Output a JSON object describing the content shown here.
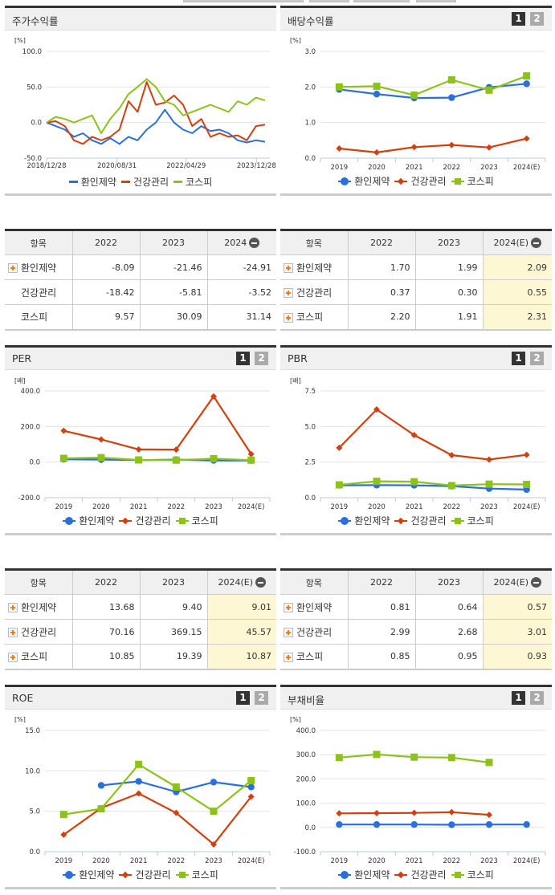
{
  "series_names": [
    "환인제약",
    "건강관리",
    "코스피"
  ],
  "colors": {
    "hwanin": "#2a6fdb",
    "health": "#d1400f",
    "kospi": "#8cc21a",
    "header_bg": "#f0f0f0",
    "highlight": "#fdf8d3"
  },
  "pager": {
    "p1": "1",
    "p2": "2"
  },
  "panels": {
    "stock_return": {
      "title": "주가수익률",
      "unit": "[%]",
      "yticks": [
        "100.0",
        "50.0",
        "0.0",
        "-50.0"
      ],
      "xticks": [
        "2018/12/28",
        "2020/08/31",
        "2022/04/29",
        "2023/12/28"
      ]
    },
    "dividend_yield": {
      "title": "배당수익률",
      "unit": "[%]",
      "yticks": [
        "3.0",
        "2.0",
        "1.0",
        "0.0"
      ],
      "xticks": [
        "2019",
        "2020",
        "2021",
        "2022",
        "2023",
        "2024(E)"
      ]
    },
    "per": {
      "title": "PER",
      "unit": "[배]",
      "yticks": [
        "400.0",
        "200.0",
        "0.0",
        "-200.0"
      ],
      "xticks": [
        "2019",
        "2020",
        "2021",
        "2022",
        "2023",
        "2024(E)"
      ]
    },
    "pbr": {
      "title": "PBR",
      "unit": "[배]",
      "yticks": [
        "7.5",
        "5.0",
        "2.5",
        "0.0"
      ],
      "xticks": [
        "2019",
        "2020",
        "2021",
        "2022",
        "2023",
        "2024(E)"
      ]
    },
    "roe": {
      "title": "ROE",
      "unit": "[%]",
      "yticks": [
        "15.0",
        "10.0",
        "5.0",
        "0.0"
      ],
      "xticks": [
        "2019",
        "2020",
        "2021",
        "2022",
        "2023",
        "2024(E)"
      ]
    },
    "debt_ratio": {
      "title": "부채비율",
      "unit": "[%]",
      "yticks": [
        "400.0",
        "300.0",
        "200.0",
        "100.0",
        "0.0",
        "-100.0"
      ],
      "xticks": [
        "2019",
        "2020",
        "2021",
        "2022",
        "2023",
        "2024(E)"
      ]
    }
  },
  "tables": {
    "stock_return": {
      "headers": [
        "항목",
        "2022",
        "2023",
        "2024"
      ],
      "rows": [
        {
          "name": "환인제약",
          "values": [
            "-8.09",
            "-21.46",
            "-24.91"
          ],
          "expand": true
        },
        {
          "name": "건강관리",
          "values": [
            "-18.42",
            "-5.81",
            "-3.52"
          ],
          "expand": false
        },
        {
          "name": "코스피",
          "values": [
            "9.57",
            "30.09",
            "31.14"
          ],
          "expand": false
        }
      ]
    },
    "dividend_yield": {
      "headers": [
        "항목",
        "2022",
        "2023",
        "2024(E)"
      ],
      "rows": [
        {
          "name": "환인제약",
          "values": [
            "1.70",
            "1.99",
            "2.09"
          ],
          "expand": true
        },
        {
          "name": "건강관리",
          "values": [
            "0.37",
            "0.30",
            "0.55"
          ],
          "expand": true
        },
        {
          "name": "코스피",
          "values": [
            "2.20",
            "1.91",
            "2.31"
          ],
          "expand": true
        }
      ]
    },
    "per": {
      "headers": [
        "항목",
        "2022",
        "2023",
        "2024(E)"
      ],
      "rows": [
        {
          "name": "환인제약",
          "values": [
            "13.68",
            "9.40",
            "9.01"
          ],
          "expand": true
        },
        {
          "name": "건강관리",
          "values": [
            "70.16",
            "369.15",
            "45.57"
          ],
          "expand": true
        },
        {
          "name": "코스피",
          "values": [
            "10.85",
            "19.39",
            "10.87"
          ],
          "expand": true
        }
      ]
    },
    "pbr": {
      "headers": [
        "항목",
        "2022",
        "2023",
        "2024(E)"
      ],
      "rows": [
        {
          "name": "환인제약",
          "values": [
            "0.81",
            "0.64",
            "0.57"
          ],
          "expand": true
        },
        {
          "name": "건강관리",
          "values": [
            "2.99",
            "2.68",
            "3.01"
          ],
          "expand": true
        },
        {
          "name": "코스피",
          "values": [
            "0.85",
            "0.95",
            "0.93"
          ],
          "expand": true
        }
      ]
    }
  },
  "chart_data": [
    {
      "title": "주가수익률",
      "type": "line",
      "ylabel": "[%]",
      "ylim": [
        -50,
        100
      ],
      "x": [
        "2018/12/28",
        "2020/08/31",
        "2022/04/29",
        "2023/12/28"
      ],
      "series": [
        {
          "name": "환인제약",
          "values": [
            0,
            -5,
            -10,
            -20,
            -15,
            -25,
            -30,
            -22,
            -30,
            -20,
            -25,
            -10,
            0,
            18,
            0,
            -10,
            -15,
            -5,
            -12,
            -10,
            -15,
            -25,
            -28,
            -25,
            -27
          ]
        },
        {
          "name": "건강관리",
          "values": [
            0,
            2,
            -5,
            -25,
            -30,
            -20,
            -25,
            -20,
            -10,
            30,
            15,
            57,
            25,
            28,
            38,
            25,
            -5,
            5,
            -20,
            -15,
            -20,
            -18,
            -25,
            -5,
            -3
          ]
        },
        {
          "name": "코스피",
          "values": [
            0,
            8,
            5,
            0,
            5,
            10,
            -15,
            5,
            20,
            40,
            50,
            61,
            50,
            30,
            25,
            10,
            15,
            20,
            25,
            20,
            15,
            30,
            25,
            35,
            31
          ]
        }
      ]
    },
    {
      "title": "배당수익률",
      "type": "line",
      "ylabel": "[%]",
      "ylim": [
        0,
        3
      ],
      "categories": [
        "2019",
        "2020",
        "2021",
        "2022",
        "2023",
        "2024(E)"
      ],
      "series": [
        {
          "name": "환인제약",
          "values": [
            1.93,
            1.8,
            1.69,
            1.7,
            1.99,
            2.09
          ]
        },
        {
          "name": "건강관리",
          "values": [
            0.27,
            0.16,
            0.31,
            0.37,
            0.3,
            0.55
          ]
        },
        {
          "name": "코스피",
          "values": [
            2.0,
            2.02,
            1.77,
            2.2,
            1.91,
            2.31
          ]
        }
      ]
    },
    {
      "title": "PER",
      "type": "line",
      "ylabel": "[배]",
      "ylim": [
        -200,
        400
      ],
      "categories": [
        "2019",
        "2020",
        "2021",
        "2022",
        "2023",
        "2024(E)"
      ],
      "series": [
        {
          "name": "환인제약",
          "values": [
            16,
            14,
            11,
            13.68,
            9.4,
            9.01
          ]
        },
        {
          "name": "건강관리",
          "values": [
            176,
            127,
            71,
            70.16,
            369.15,
            45.57
          ]
        },
        {
          "name": "코스피",
          "values": [
            21,
            25,
            12,
            10.85,
            19.39,
            10.87
          ]
        }
      ]
    },
    {
      "title": "PBR",
      "type": "line",
      "ylabel": "[배]",
      "ylim": [
        0,
        7.5
      ],
      "categories": [
        "2019",
        "2020",
        "2021",
        "2022",
        "2023",
        "2024(E)"
      ],
      "series": [
        {
          "name": "환인제약",
          "values": [
            0.87,
            0.88,
            0.87,
            0.81,
            0.64,
            0.57
          ]
        },
        {
          "name": "건강관리",
          "values": [
            3.5,
            6.2,
            4.4,
            2.99,
            2.68,
            3.01
          ]
        },
        {
          "name": "코스피",
          "values": [
            0.9,
            1.15,
            1.12,
            0.85,
            0.95,
            0.93
          ]
        }
      ]
    },
    {
      "title": "ROE",
      "type": "line",
      "ylabel": "[%]",
      "ylim": [
        0,
        15
      ],
      "categories": [
        "2019",
        "2020",
        "2021",
        "2022",
        "2023",
        "2024(E)"
      ],
      "series": [
        {
          "name": "환인제약",
          "values": [
            null,
            8.2,
            8.7,
            7.4,
            8.6,
            8.0
          ]
        },
        {
          "name": "건강관리",
          "values": [
            2.1,
            5.4,
            7.2,
            4.8,
            0.9,
            6.8
          ]
        },
        {
          "name": "코스피",
          "values": [
            4.6,
            5.3,
            10.8,
            8.0,
            5.0,
            8.8
          ]
        }
      ]
    },
    {
      "title": "부채비율",
      "type": "line",
      "ylabel": "[%]",
      "ylim": [
        -100,
        400
      ],
      "categories": [
        "2019",
        "2020",
        "2021",
        "2022",
        "2023",
        "2024(E)"
      ],
      "series": [
        {
          "name": "환인제약",
          "values": [
            12,
            12,
            12,
            11,
            12,
            12
          ]
        },
        {
          "name": "건강관리",
          "values": [
            58,
            59,
            60,
            63,
            52,
            null
          ]
        },
        {
          "name": "코스피",
          "values": [
            288,
            301,
            290,
            288,
            268,
            null
          ]
        }
      ]
    }
  ]
}
